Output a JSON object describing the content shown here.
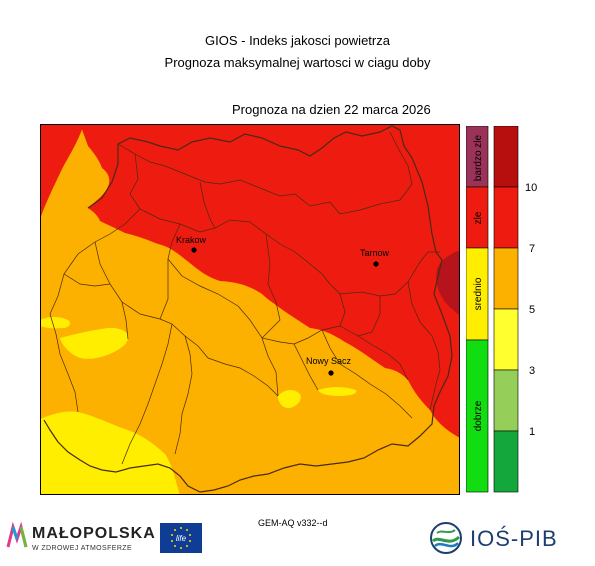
{
  "header": {
    "title_line1": "GIOS - Indeks jakosci powietrza",
    "title_line2": "Prognoza maksymalnej wartosci w ciagu doby",
    "forecast_date": "Prognoza na dzien  22 marca 2026"
  },
  "map": {
    "cities": [
      {
        "name": "Krakow"
      },
      {
        "name": "Tarnow"
      },
      {
        "name": "Nowy Sacz"
      }
    ],
    "colors": {
      "red_zone": "#ee1c10",
      "orange_zone": "#fcb000",
      "yellow_zone": "#ffee00",
      "dark_red_zone": "#b5141d",
      "border_line": "#4a2a10"
    }
  },
  "legend": {
    "categories": [
      {
        "label": "bardzo zle",
        "color": "#9b3358"
      },
      {
        "label": "zle",
        "color": "#ee1c10"
      },
      {
        "label": "srednio",
        "color": "#ffee00"
      },
      {
        "label": "dobrze",
        "color": "#11dd11"
      }
    ],
    "scale_colors": [
      "#b70e0e",
      "#ee1c10",
      "#fcb000",
      "#ffff30",
      "#95cf5a",
      "#14a83c"
    ],
    "scale_ticks": [
      "10",
      "7",
      "5",
      "3",
      "1"
    ]
  },
  "footer": {
    "model": "GEM-AQ v332--d",
    "malopolska_name": "MAŁOPOLSKA",
    "malopolska_slogan": "W ZDROWEJ ATMOSFERZE",
    "ios_name": "IOŚ-PIB",
    "eu_flag_text": "life"
  }
}
